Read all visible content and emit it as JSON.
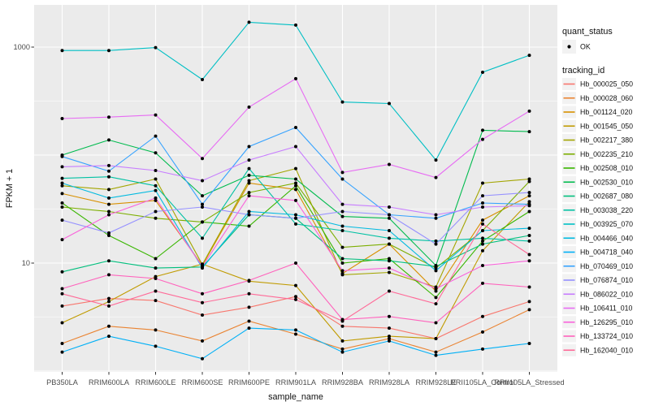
{
  "chart_data": {
    "type": "line",
    "title": "",
    "xlabel": "sample_name",
    "ylabel": "FPKM + 1",
    "y_scale": "log10",
    "ylim": [
      1,
      2500
    ],
    "y_ticks": [
      {
        "value": 1000,
        "label": "1000"
      },
      {
        "value": 10,
        "label": "10"
      }
    ],
    "y_major_gridlines": [
      1,
      10,
      100,
      1000
    ],
    "y_minor_gridlines": [
      3.162,
      31.62,
      316.2
    ],
    "grid": true,
    "legend_position": "right",
    "marker": "black-point",
    "x_categories": [
      "PB350LA",
      "RRIM600LA",
      "RRIM600LE",
      "RRIM600SE",
      "RRIM600PE",
      "RRIM901LA",
      "RRIM928BA",
      "RRIM928LA",
      "RRIM928LE",
      "RRII105LA_Control",
      "RRII105LA_Stressed"
    ],
    "series": [
      {
        "id": "Hb_000025_050",
        "color": "#F8766D",
        "values": [
          4.0,
          4.7,
          4.5,
          3.3,
          3.9,
          4.9,
          2.6,
          2.5,
          2.0,
          3.2,
          4.4
        ]
      },
      {
        "id": "Hb_000028_060",
        "color": "#EA8331",
        "values": [
          1.8,
          2.6,
          2.4,
          1.9,
          2.9,
          2.2,
          1.6,
          2.0,
          1.5,
          2.3,
          3.7
        ]
      },
      {
        "id": "Hb_001124_020",
        "color": "#D89000",
        "values": [
          44,
          35,
          38,
          9.5,
          55,
          48,
          8.0,
          15,
          5.5,
          25,
          42
        ]
      },
      {
        "id": "Hb_001545_050",
        "color": "#C09B00",
        "values": [
          2.8,
          4.4,
          7.5,
          9.8,
          6.8,
          6.2,
          1.9,
          2.1,
          2.0,
          13,
          37
        ]
      },
      {
        "id": "Hb_002217_380",
        "color": "#A3A500",
        "values": [
          52,
          48,
          60,
          9.7,
          58,
          75,
          7.8,
          8.2,
          6.0,
          55,
          60
        ]
      },
      {
        "id": "Hb_002235_210",
        "color": "#7CAE00",
        "values": [
          33,
          30,
          26,
          24,
          45,
          55,
          14,
          15,
          9.0,
          20,
          57
        ]
      },
      {
        "id": "Hb_002508_010",
        "color": "#39B600",
        "values": [
          36,
          18,
          11,
          24,
          22,
          52,
          10,
          11,
          4.8,
          16,
          30
        ]
      },
      {
        "id": "Hb_002530_010",
        "color": "#00BB4E",
        "values": [
          100,
          138,
          105,
          42,
          65,
          60,
          27,
          26,
          9.5,
          170,
          165
        ]
      },
      {
        "id": "Hb_002687_080",
        "color": "#00BF7D",
        "values": [
          8.3,
          10.5,
          9.0,
          9.2,
          28,
          26,
          11,
          10.5,
          9.3,
          15,
          18
        ]
      },
      {
        "id": "Hb_003038_220",
        "color": "#00C1A3",
        "values": [
          61,
          63,
          52,
          17,
          75,
          23,
          20,
          17,
          16,
          17,
          16
        ]
      },
      {
        "id": "Hb_003925_070",
        "color": "#00BFC4",
        "values": [
          930,
          930,
          990,
          500,
          1700,
          1600,
          310,
          300,
          90,
          585,
          840
        ]
      },
      {
        "id": "Hb_004466_040",
        "color": "#00BAE0",
        "values": [
          55,
          40,
          47,
          9.0,
          30,
          28,
          22,
          20,
          8.5,
          20,
          21
        ]
      },
      {
        "id": "Hb_004718_040",
        "color": "#00B0F6",
        "values": [
          1.5,
          2.1,
          1.7,
          1.3,
          2.5,
          2.4,
          1.5,
          1.9,
          1.4,
          1.6,
          1.8
        ]
      },
      {
        "id": "Hb_070469_010",
        "color": "#35A2FF",
        "values": [
          97,
          71,
          150,
          35,
          120,
          180,
          60,
          28,
          26,
          36,
          35
        ]
      },
      {
        "id": "Hb_076874_010",
        "color": "#9590FF",
        "values": [
          25,
          19,
          30,
          33,
          28,
          26,
          30,
          28,
          15,
          42,
          45
        ]
      },
      {
        "id": "Hb_086022_010",
        "color": "#C77CFF",
        "values": [
          78,
          80,
          72,
          58,
          90,
          120,
          35,
          33,
          28,
          33,
          34
        ]
      },
      {
        "id": "Hb_106411_010",
        "color": "#E76BF3",
        "values": [
          218,
          225,
          235,
          93,
          278,
          510,
          69,
          82,
          62,
          140,
          255
        ]
      },
      {
        "id": "Hb_126295_010",
        "color": "#FA62DB",
        "values": [
          16.5,
          28,
          40,
          9.3,
          42,
          38,
          8.5,
          9.0,
          5.8,
          9.5,
          10.5
        ]
      },
      {
        "id": "Hb_133724_010",
        "color": "#FF62BC",
        "values": [
          5.8,
          7.8,
          7.2,
          5.2,
          6.9,
          10,
          3.0,
          3.2,
          2.8,
          6.5,
          6.0
        ]
      },
      {
        "id": "Hb_162040_010",
        "color": "#FF6A98",
        "values": [
          5.2,
          4.0,
          5.5,
          4.3,
          5.2,
          4.6,
          2.9,
          5.5,
          4.2,
          23,
          12
        ]
      }
    ]
  },
  "legend": {
    "quant_status": {
      "title": "quant_status",
      "items": [
        {
          "label": "OK",
          "marker": "point"
        }
      ]
    },
    "tracking": {
      "title": "tracking_id"
    }
  },
  "colors": {
    "background": "#FFFFFF",
    "panel": "#EBEBEB",
    "gridline": "#FFFFFF",
    "tick": "#333333",
    "tick_label": "#4D4D4D",
    "legend_key_bg": "#F2F2F2",
    "point": "#000000"
  }
}
